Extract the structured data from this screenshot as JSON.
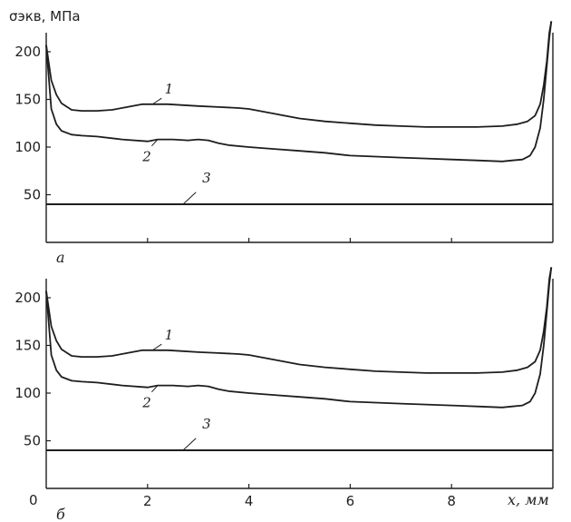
{
  "figure": {
    "y_axis_label": "σэкв, МПа",
    "x_axis_label": "x, мм",
    "x_zero_label": "0"
  },
  "chart_data": [
    {
      "type": "line",
      "panel_label": "а",
      "xlim": [
        0,
        10
      ],
      "ylim": [
        0,
        220
      ],
      "x_ticks": [
        2,
        4,
        6,
        8
      ],
      "y_ticks": [
        50,
        100,
        150,
        200
      ],
      "y_tick_labels": [
        "50",
        "100",
        "150",
        "200"
      ],
      "grid": false,
      "series": [
        {
          "name": "1",
          "x": [
            0,
            0.1,
            0.2,
            0.3,
            0.5,
            0.7,
            1.0,
            1.3,
            1.6,
            1.9,
            2.1,
            2.4,
            2.7,
            3.0,
            3.4,
            3.8,
            4.0,
            4.5,
            5.0,
            5.5,
            6.0,
            6.5,
            7.0,
            7.5,
            8.0,
            8.5,
            9.0,
            9.3,
            9.5,
            9.65,
            9.75,
            9.82,
            9.88,
            9.93,
            9.97
          ],
          "y": [
            207,
            170,
            155,
            146,
            139,
            138,
            138,
            139,
            142,
            145,
            145,
            145,
            144,
            143,
            142,
            141,
            140,
            135,
            130,
            127,
            125,
            123,
            122,
            121,
            121,
            121,
            122,
            124,
            127,
            133,
            145,
            165,
            190,
            220,
            242
          ]
        },
        {
          "name": "2",
          "x": [
            0,
            0.1,
            0.2,
            0.3,
            0.5,
            0.7,
            1.0,
            1.5,
            2.0,
            2.2,
            2.5,
            2.8,
            3.0,
            3.2,
            3.4,
            3.6,
            4.0,
            4.5,
            5.0,
            5.5,
            6.0,
            6.5,
            7.0,
            7.5,
            8.0,
            8.5,
            9.0,
            9.2,
            9.4,
            9.55,
            9.65,
            9.75,
            9.82,
            9.88,
            9.93,
            9.97
          ],
          "y": [
            207,
            140,
            124,
            117,
            113,
            112,
            111,
            108,
            106,
            108,
            108,
            107,
            108,
            107,
            104,
            102,
            100,
            98,
            96,
            94,
            91,
            90,
            89,
            88,
            87,
            86,
            85,
            86,
            87,
            91,
            100,
            120,
            150,
            185,
            215,
            240
          ]
        },
        {
          "name": "3",
          "x": [
            0,
            10
          ],
          "y": [
            40,
            40
          ]
        }
      ]
    },
    {
      "type": "line",
      "panel_label": "б",
      "xlim": [
        0,
        10
      ],
      "ylim": [
        0,
        220
      ],
      "x_ticks": [
        0,
        2,
        4,
        6,
        8
      ],
      "x_tick_labels": [
        "0",
        "2",
        "4",
        "6",
        "8"
      ],
      "y_ticks": [
        50,
        100,
        150,
        200
      ],
      "y_tick_labels": [
        "50",
        "100",
        "150",
        "200"
      ],
      "grid": false,
      "series": [
        {
          "name": "1",
          "x": [
            0,
            0.1,
            0.2,
            0.3,
            0.5,
            0.7,
            1.0,
            1.3,
            1.6,
            1.9,
            2.1,
            2.4,
            2.7,
            3.0,
            3.4,
            3.8,
            4.0,
            4.5,
            5.0,
            5.5,
            6.0,
            6.5,
            7.0,
            7.5,
            8.0,
            8.5,
            9.0,
            9.3,
            9.5,
            9.65,
            9.75,
            9.82,
            9.88,
            9.93,
            9.97
          ],
          "y": [
            207,
            170,
            155,
            146,
            139,
            138,
            138,
            139,
            142,
            145,
            145,
            145,
            144,
            143,
            142,
            141,
            140,
            135,
            130,
            127,
            125,
            123,
            122,
            121,
            121,
            121,
            122,
            124,
            127,
            133,
            145,
            165,
            190,
            220,
            242
          ]
        },
        {
          "name": "2",
          "x": [
            0,
            0.1,
            0.2,
            0.3,
            0.5,
            0.7,
            1.0,
            1.5,
            2.0,
            2.2,
            2.5,
            2.8,
            3.0,
            3.2,
            3.4,
            3.6,
            4.0,
            4.5,
            5.0,
            5.5,
            6.0,
            6.5,
            7.0,
            7.5,
            8.0,
            8.5,
            9.0,
            9.2,
            9.4,
            9.55,
            9.65,
            9.75,
            9.82,
            9.88,
            9.93,
            9.97
          ],
          "y": [
            207,
            140,
            124,
            117,
            113,
            112,
            111,
            108,
            106,
            108,
            108,
            107,
            108,
            107,
            104,
            102,
            100,
            98,
            96,
            94,
            91,
            90,
            89,
            88,
            87,
            86,
            85,
            86,
            87,
            91,
            100,
            120,
            150,
            185,
            215,
            240
          ]
        },
        {
          "name": "3",
          "x": [
            0,
            10
          ],
          "y": [
            40,
            40
          ]
        }
      ]
    }
  ],
  "colors": {
    "line": "#1e1e1e",
    "axis": "#1e1e1e",
    "background": "#ffffff"
  }
}
